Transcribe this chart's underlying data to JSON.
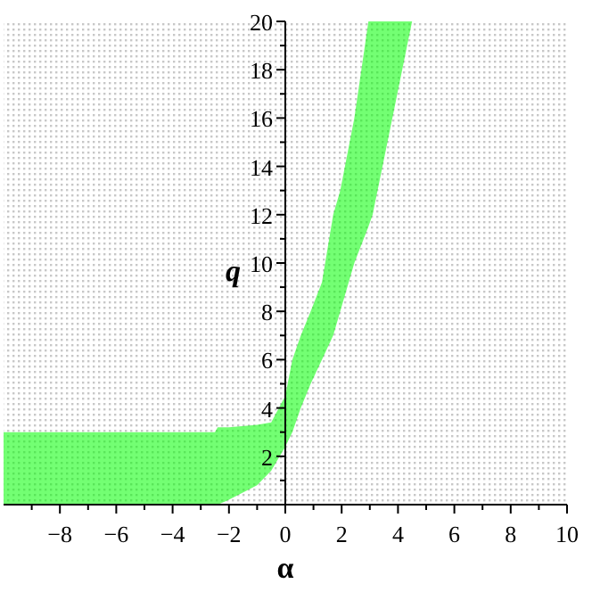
{
  "chart_data": {
    "type": "line",
    "xlabel": "α",
    "ylabel": "q",
    "xlim": [
      -10,
      10
    ],
    "ylim": [
      0,
      20
    ],
    "xticks": [
      {
        "value": -9,
        "label": null
      },
      -8,
      {
        "value": -7,
        "label": null
      },
      -6,
      {
        "value": -5,
        "label": null
      },
      -4,
      {
        "value": -3,
        "label": null
      },
      -2,
      {
        "value": -1,
        "label": null
      },
      0,
      {
        "value": 1,
        "label": null
      },
      2,
      {
        "value": 3,
        "label": null
      },
      4,
      {
        "value": 5,
        "label": null
      },
      6,
      {
        "value": 7,
        "label": null
      },
      8,
      {
        "value": 9,
        "label": null
      },
      10
    ],
    "yticks": [
      {
        "value": 1,
        "label": null
      },
      2,
      {
        "value": 3,
        "label": null
      },
      4,
      {
        "value": 5,
        "label": null
      },
      6,
      {
        "value": 7,
        "label": null
      },
      8,
      {
        "value": 9,
        "label": null
      },
      10,
      {
        "value": 11,
        "label": null
      },
      12,
      {
        "value": 13,
        "label": null
      },
      14,
      {
        "value": 15,
        "label": null
      },
      16,
      {
        "value": 17,
        "label": null
      },
      18,
      {
        "value": 19,
        "label": null
      },
      20
    ],
    "series": [
      {
        "color": "#00ff00",
        "x": [
          -10,
          -2.5,
          -2.4,
          -2,
          -1,
          -0.5,
          0,
          0.25,
          0.55,
          0.9,
          1.3,
          1.7,
          1.95,
          2.45,
          2.95,
          3.1,
          3.8,
          4.5
        ],
        "values": [
          null,
          null,
          null,
          null,
          null,
          null,
          null,
          null,
          null,
          null,
          null,
          null,
          null,
          null,
          null,
          null,
          null,
          null
        ],
        "upper": [
          3,
          3,
          3.2,
          3.2,
          3.3,
          3.4,
          4.5,
          6,
          7,
          8,
          9.2,
          12,
          13,
          16,
          20,
          20,
          20,
          20
        ],
        "lower": [
          0,
          0,
          0,
          0.2,
          0.8,
          1.4,
          2.4,
          3,
          4,
          5,
          6,
          7,
          8,
          10,
          11.5,
          12,
          16,
          20
        ]
      }
    ]
  }
}
